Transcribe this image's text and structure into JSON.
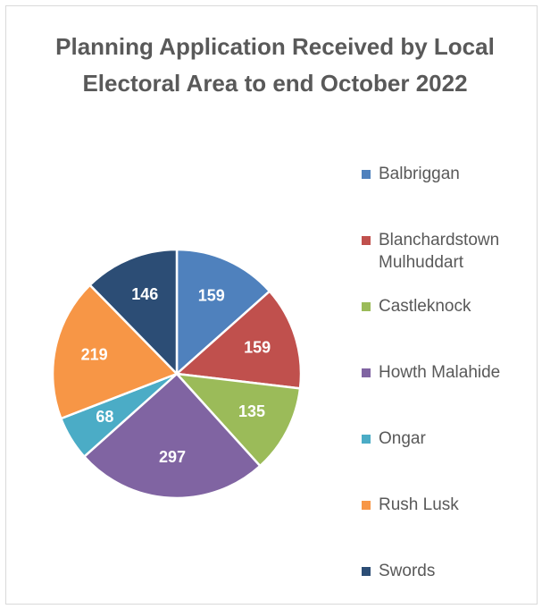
{
  "chart_data": {
    "type": "pie",
    "title": "Planning Application Received by Local Electoral Area to end October 2022",
    "categories": [
      "Balbriggan",
      "Blanchardstown Mulhuddart",
      "Castleknock",
      "Howth Malahide",
      "Ongar",
      "Rush Lusk",
      "Swords"
    ],
    "values": [
      159,
      159,
      135,
      297,
      68,
      219,
      146
    ],
    "colors": [
      "#4f81bd",
      "#c0504d",
      "#9bbb59",
      "#8064a2",
      "#4bacc6",
      "#f79646",
      "#2c4d75"
    ],
    "legend": "right"
  }
}
